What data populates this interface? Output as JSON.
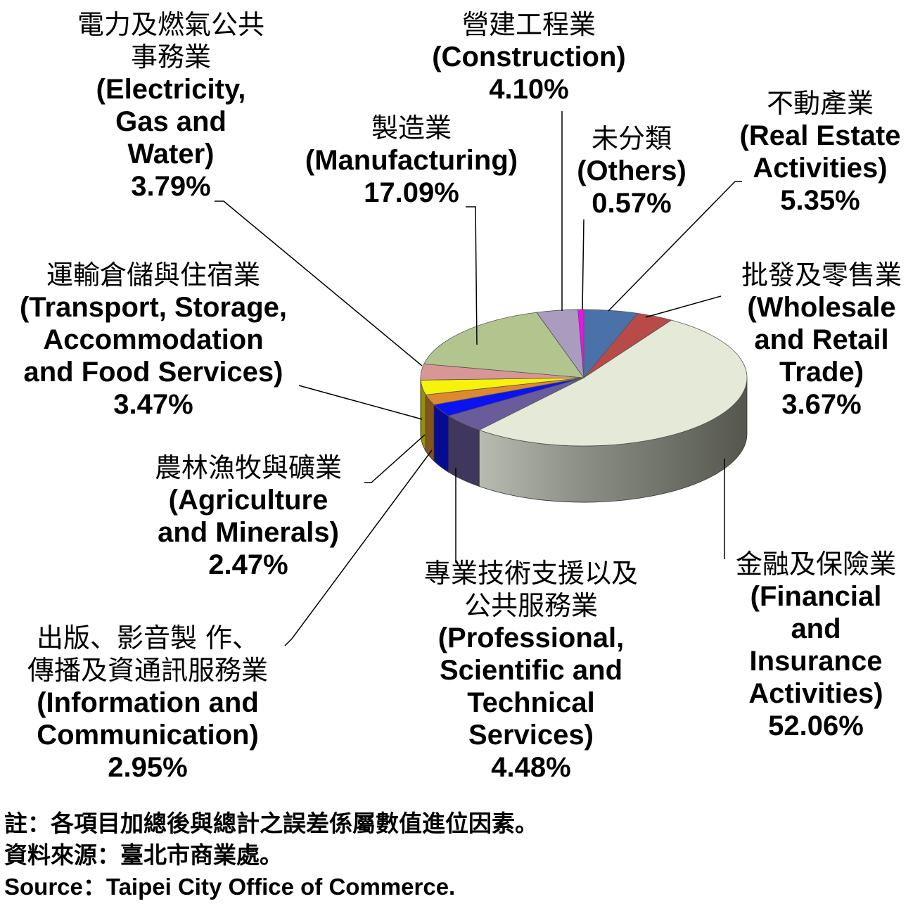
{
  "chart_data": {
    "type": "pie",
    "slices": [
      {
        "id": "real-estate",
        "label_zh": "不動產業",
        "label_en": [
          "(Real Estate",
          "Activities)"
        ],
        "value": 5.35,
        "pct": "5.35%",
        "color": "#4a72a8"
      },
      {
        "id": "wholesale",
        "label_zh": "批發及零售業",
        "label_en": [
          "(Wholesale",
          "and Retail",
          "Trade)"
        ],
        "value": 3.67,
        "pct": "3.67%",
        "color": "#b84a48"
      },
      {
        "id": "financial",
        "label_zh": "金融及保險業",
        "label_en": [
          "(Financial",
          "and",
          "Insurance",
          "Activities)"
        ],
        "value": 52.06,
        "pct": "52.06%",
        "color": "#e4ead7"
      },
      {
        "id": "professional",
        "label_zh": "專業技術支援以及公共服務業",
        "label_en": [
          "(Professional,",
          "Scientific and",
          "Technical",
          "Services)"
        ],
        "value": 4.48,
        "pct": "4.48%",
        "color": "#6a5b9a"
      },
      {
        "id": "information",
        "label_zh": "出版、影音製 作、傳播及資通訊服務業",
        "label_en": [
          "(Information and",
          "Communication)"
        ],
        "value": 2.95,
        "pct": "2.95%",
        "color": "#0a14f0"
      },
      {
        "id": "agriculture",
        "label_zh": "農林漁牧與礦業",
        "label_en": [
          "(Agriculture",
          "and Minerals)"
        ],
        "value": 2.47,
        "pct": "2.47%",
        "color": "#dd8a2e"
      },
      {
        "id": "transport",
        "label_zh": "運輸倉儲與住宿業",
        "label_en": [
          "(Transport, Storage,",
          "Accommodation",
          "and Food Services)"
        ],
        "value": 3.47,
        "pct": "3.47%",
        "color": "#f6f20a"
      },
      {
        "id": "electricity",
        "label_zh": "電力及燃氣公共事務業",
        "label_en": [
          "(Electricity,",
          "Gas and",
          "Water)"
        ],
        "value": 3.79,
        "pct": "3.79%",
        "color": "#d99696"
      },
      {
        "id": "manufacturing",
        "label_zh": "製造業",
        "label_en": [
          "(Manufacturing)"
        ],
        "value": 17.09,
        "pct": "17.09%",
        "color": "#b3c58e"
      },
      {
        "id": "construction",
        "label_zh": "營建工程業",
        "label_en": [
          "(Construction)"
        ],
        "value": 4.1,
        "pct": "4.10%",
        "color": "#a99cbf"
      },
      {
        "id": "others",
        "label_zh": "未分類",
        "label_en": [
          "(Others)"
        ],
        "value": 0.57,
        "pct": "0.57%",
        "color": "#f20cf2"
      }
    ]
  },
  "notes": {
    "note": "註：各項目加總後與總計之誤差係屬數值進位因素。",
    "source_zh": "資料來源：臺北市商業處。",
    "source_en": "Source：Taipei City Office of Commerce."
  }
}
